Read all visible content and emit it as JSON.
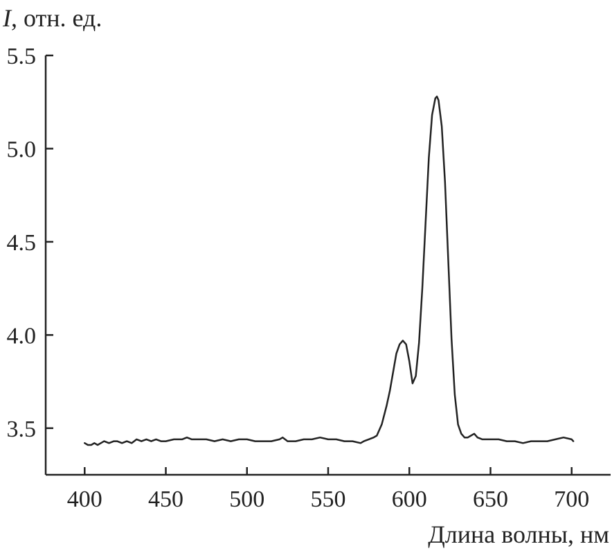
{
  "chart_data": {
    "type": "line",
    "title": "",
    "ylabel_symbol": "I",
    "ylabel_rest": ", отн. ед.",
    "xlabel": "Длина волны, нм",
    "xlim": [
      376,
      724
    ],
    "ylim": [
      3.25,
      5.5
    ],
    "x_ticks": [
      400,
      450,
      500,
      550,
      600,
      650,
      700
    ],
    "x_tick_labels": [
      "400",
      "450",
      "500",
      "550",
      "600",
      "650",
      "700"
    ],
    "y_ticks": [
      3.5,
      4.0,
      4.5,
      5.0,
      5.5
    ],
    "y_tick_labels": [
      "3.5",
      "4.0",
      "4.5",
      "5.0",
      "5.5"
    ],
    "grid": false,
    "series": [
      {
        "color": "#222222",
        "x": [
          400,
          402,
          404,
          406,
          408,
          410,
          412,
          415,
          418,
          420,
          423,
          426,
          429,
          432,
          435,
          438,
          441,
          444,
          447,
          450,
          455,
          460,
          463,
          466,
          470,
          475,
          480,
          485,
          490,
          495,
          500,
          505,
          510,
          515,
          520,
          522,
          525,
          530,
          535,
          540,
          545,
          550,
          555,
          560,
          565,
          570,
          572,
          575,
          578,
          580,
          583,
          586,
          588,
          590,
          592,
          594,
          596,
          598,
          600,
          602,
          604,
          606,
          608,
          610,
          612,
          614,
          616,
          617,
          618,
          620,
          622,
          624,
          626,
          628,
          630,
          632,
          634,
          636,
          638,
          640,
          642,
          645,
          650,
          655,
          660,
          665,
          670,
          675,
          680,
          685,
          690,
          695,
          700,
          701
        ],
        "y": [
          3.42,
          3.41,
          3.41,
          3.42,
          3.41,
          3.42,
          3.43,
          3.42,
          3.43,
          3.43,
          3.42,
          3.43,
          3.42,
          3.44,
          3.43,
          3.44,
          3.43,
          3.44,
          3.43,
          3.43,
          3.44,
          3.44,
          3.45,
          3.44,
          3.44,
          3.44,
          3.43,
          3.44,
          3.43,
          3.44,
          3.44,
          3.43,
          3.43,
          3.43,
          3.44,
          3.45,
          3.43,
          3.43,
          3.44,
          3.44,
          3.45,
          3.44,
          3.44,
          3.43,
          3.43,
          3.42,
          3.43,
          3.44,
          3.45,
          3.46,
          3.52,
          3.62,
          3.7,
          3.8,
          3.9,
          3.95,
          3.97,
          3.95,
          3.86,
          3.74,
          3.78,
          3.96,
          4.25,
          4.6,
          4.95,
          5.18,
          5.27,
          5.28,
          5.26,
          5.12,
          4.82,
          4.4,
          3.98,
          3.68,
          3.52,
          3.47,
          3.45,
          3.45,
          3.46,
          3.47,
          3.45,
          3.44,
          3.44,
          3.44,
          3.43,
          3.43,
          3.42,
          3.43,
          3.43,
          3.43,
          3.44,
          3.45,
          3.44,
          3.43
        ]
      }
    ]
  }
}
